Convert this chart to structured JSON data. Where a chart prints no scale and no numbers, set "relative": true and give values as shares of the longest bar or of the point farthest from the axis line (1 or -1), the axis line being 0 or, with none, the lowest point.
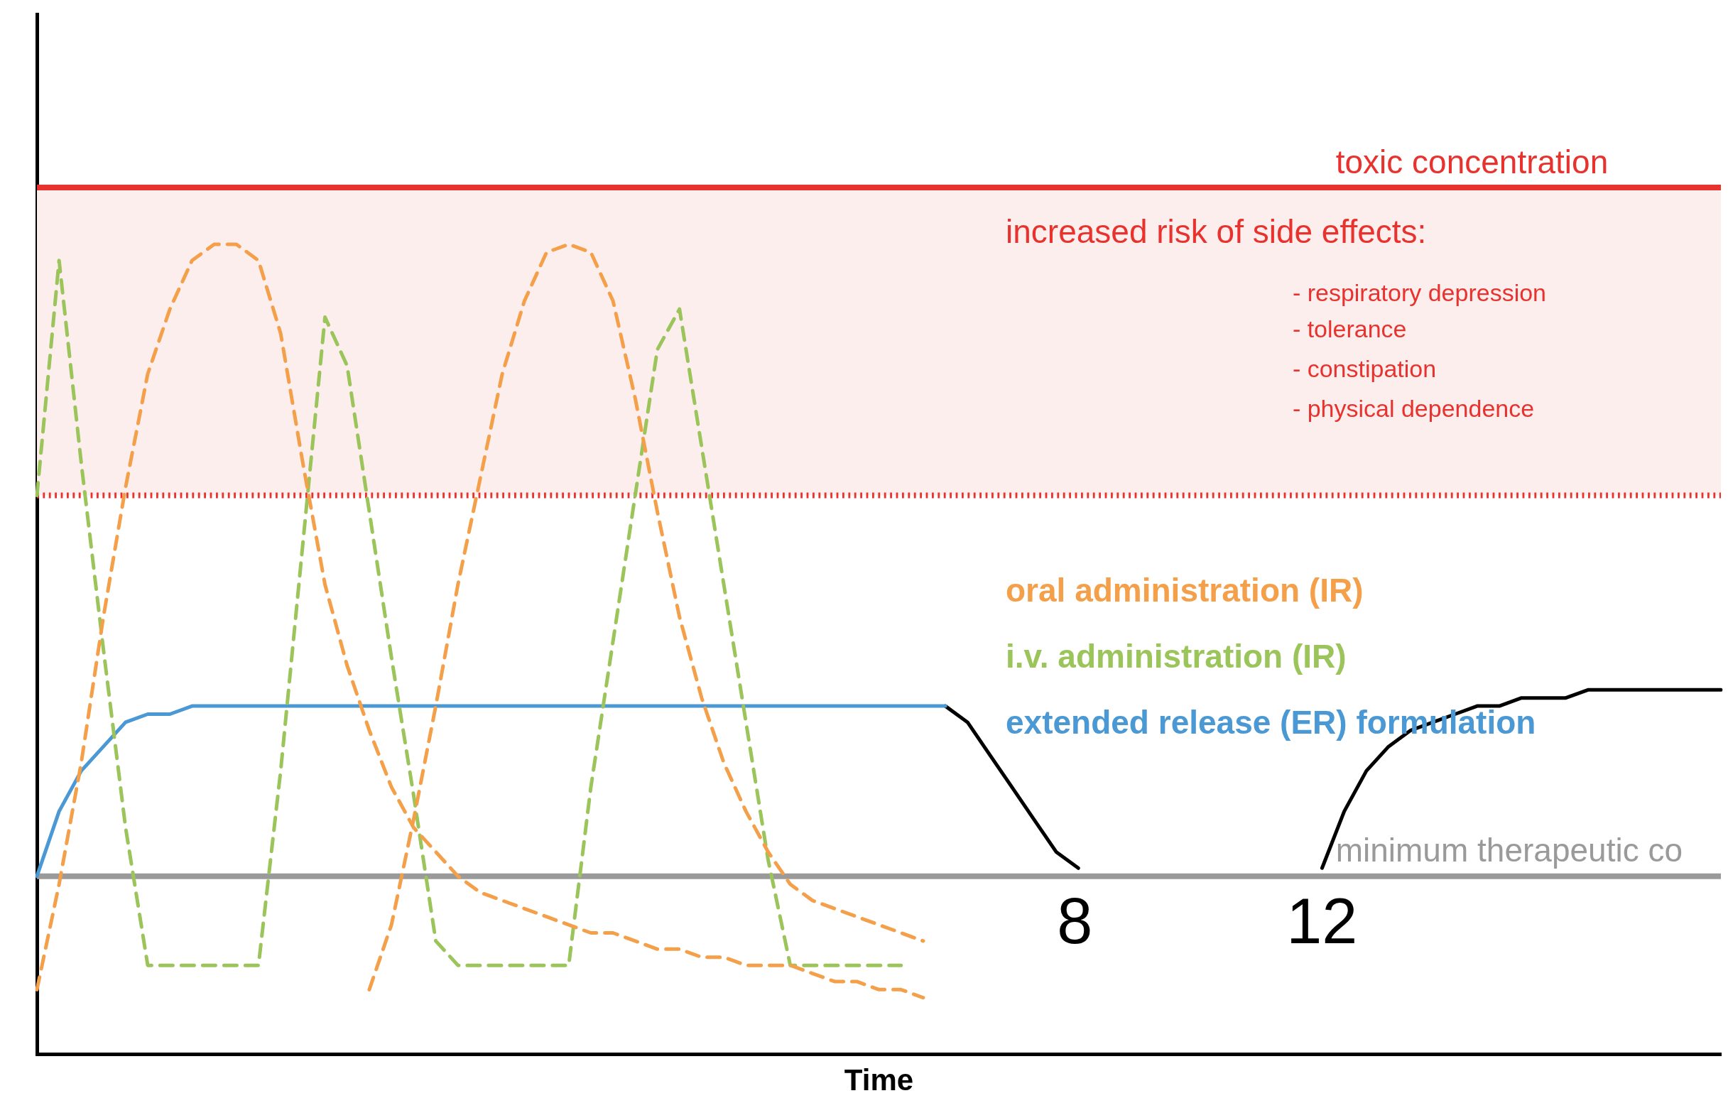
{
  "chart_data": {
    "type": "line",
    "relative": true,
    "xlabel": "Time",
    "grid": false,
    "marker": "none",
    "categories": [
      null,
      null,
      null,
      null,
      null,
      null,
      null,
      null,
      null,
      null,
      null,
      null,
      null,
      null,
      null,
      null,
      null,
      null,
      null,
      null,
      null,
      null,
      null,
      null,
      null,
      null,
      null,
      null,
      null,
      null,
      null,
      null,
      null,
      null,
      null,
      null,
      null,
      null,
      null,
      null,
      null,
      null,
      null,
      null,
      null,
      null,
      null,
      null,
      null,
      null,
      null,
      null,
      null,
      null,
      null,
      null,
      null,
      null,
      null,
      null,
      null,
      null,
      null,
      null,
      null,
      null,
      null,
      null,
      null,
      null,
      null,
      null,
      null,
      null,
      null,
      null,
      null
    ],
    "series": [
      {
        "name": "oral administration (IR)",
        "color": "#f4a04a",
        "line_style": "dashed",
        "values": [
          0.08,
          0.21,
          0.36,
          0.54,
          0.7,
          0.84,
          0.92,
          0.98,
          1.0,
          1.0,
          0.98,
          0.89,
          0.73,
          0.58,
          0.48,
          0.4,
          0.33,
          0.28,
          0.25,
          0.22,
          0.2,
          0.19,
          0.18,
          0.17,
          0.16,
          0.15,
          0.15,
          0.14,
          0.13,
          0.13,
          0.12,
          0.12,
          0.11,
          0.11,
          0.11,
          0.1,
          0.09,
          0.09,
          0.08,
          0.08,
          0.07,
          null,
          null,
          null,
          null,
          null,
          null,
          null,
          null,
          null,
          null,
          null,
          null,
          null,
          null,
          null,
          null,
          null,
          null,
          null,
          null,
          null,
          null,
          null,
          null,
          null,
          null,
          null,
          null,
          null,
          null,
          null,
          null,
          null,
          null,
          null,
          null
        ]
      },
      {
        "color": "#f4a04a",
        "line_style": "dashed",
        "values": [
          null,
          null,
          null,
          null,
          null,
          null,
          null,
          null,
          null,
          null,
          null,
          null,
          null,
          null,
          null,
          0.08,
          0.16,
          0.29,
          0.43,
          0.58,
          0.71,
          0.84,
          0.93,
          0.99,
          1.0,
          0.99,
          0.93,
          0.81,
          0.67,
          0.54,
          0.44,
          0.36,
          0.3,
          0.25,
          0.21,
          0.19,
          0.18,
          0.17,
          0.16,
          0.15,
          0.14,
          null,
          null,
          null,
          null,
          null,
          null,
          null,
          null,
          null,
          null,
          null,
          null,
          null,
          null,
          null,
          null,
          null,
          null,
          null,
          null,
          null,
          null,
          null,
          null,
          null,
          null,
          null,
          null,
          null,
          null,
          null,
          null,
          null,
          null,
          null,
          null
        ]
      },
      {
        "name": "i.v. administration (IR)",
        "color": "#9bc45a",
        "line_style": "dashed",
        "values": [
          0.69,
          0.98,
          0.73,
          0.5,
          0.28,
          0.11,
          0.11,
          0.11,
          0.11,
          0.11,
          0.11,
          0.35,
          0.63,
          0.91,
          0.85,
          0.67,
          0.49,
          0.32,
          0.14,
          0.11,
          0.11,
          0.11,
          0.11,
          0.11,
          0.11,
          0.33,
          0.51,
          0.69,
          0.87,
          0.92,
          0.75,
          0.58,
          0.41,
          0.24,
          0.11,
          0.11,
          0.11,
          0.11,
          0.11,
          0.11,
          null,
          null,
          null,
          null,
          null,
          null,
          null,
          null,
          null,
          null,
          null,
          null,
          null,
          null,
          null,
          null,
          null,
          null,
          null,
          null,
          null,
          null,
          null,
          null,
          null,
          null,
          null,
          null,
          null,
          null,
          null,
          null,
          null,
          null,
          null,
          null,
          null
        ]
      },
      {
        "name": "extended release (ER) formulation",
        "color": "#4a98d4",
        "line_style": "solid",
        "values": [
          0.22,
          0.3,
          0.35,
          0.38,
          0.41,
          0.42,
          0.42,
          0.43,
          0.43,
          0.43,
          0.43,
          0.43,
          0.43,
          0.43,
          0.43,
          0.43,
          0.43,
          0.43,
          0.43,
          0.43,
          0.43,
          0.43,
          0.43,
          0.43,
          0.43,
          0.43,
          0.43,
          0.43,
          0.43,
          0.43,
          0.43,
          0.43,
          0.43,
          0.43,
          0.43,
          0.43,
          0.43,
          0.43,
          0.43,
          0.43,
          0.43,
          0.43,
          null,
          null,
          null,
          null,
          null,
          null,
          null,
          null,
          null,
          null,
          null,
          null,
          null,
          null,
          null,
          null,
          null,
          null,
          null,
          null,
          null,
          null,
          null,
          null,
          null,
          null,
          null,
          null,
          null,
          null,
          null,
          null,
          null,
          null,
          null
        ]
      },
      {
        "color": "#000000",
        "line_style": "solid",
        "values": [
          null,
          null,
          null,
          null,
          null,
          null,
          null,
          null,
          null,
          null,
          null,
          null,
          null,
          null,
          null,
          null,
          null,
          null,
          null,
          null,
          null,
          null,
          null,
          null,
          null,
          null,
          null,
          null,
          null,
          null,
          null,
          null,
          null,
          null,
          null,
          null,
          null,
          null,
          null,
          null,
          null,
          0.43,
          0.41,
          0.37,
          0.33,
          0.29,
          0.25,
          0.23,
          null,
          null,
          null,
          null,
          null,
          null,
          null,
          null,
          null,
          null,
          0.23,
          0.3,
          0.35,
          0.38,
          0.4,
          0.41,
          0.42,
          0.43,
          0.43,
          0.44,
          0.44,
          0.44,
          0.45,
          0.45,
          0.45,
          0.45,
          0.45,
          0.45,
          0.45
        ]
      }
    ],
    "ref_lines": [
      {
        "axis": "y",
        "value": 1.07,
        "label": "toxic concentration",
        "color": "#e8322e",
        "line_style": "solid"
      },
      {
        "axis": "y",
        "value": 0.69,
        "color": "#e8322e",
        "line_style": "dotted"
      },
      {
        "axis": "y",
        "value": 0.22,
        "label": "minimum therapeutic co",
        "color": "#9a9a9a",
        "line_style": "solid"
      }
    ],
    "bands": [
      {
        "axis": "y",
        "from": 0.69,
        "to": 1.07,
        "color": "#fdeeee"
      }
    ],
    "annotations": [
      "increased risk of side effects:",
      "- respiratory depression",
      "- tolerance",
      "- constipation",
      "- physical dependence",
      "8",
      "12"
    ]
  }
}
